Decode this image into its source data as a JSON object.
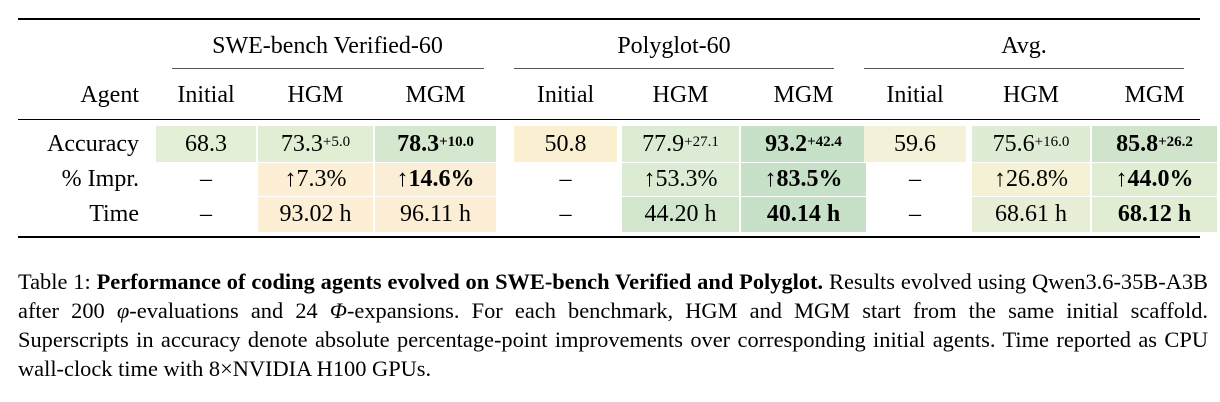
{
  "table": {
    "groups": [
      "SWE-bench Verified-60",
      "Polyglot-60",
      "Avg."
    ],
    "agent_label": "Agent",
    "columns": [
      "Initial",
      "HGM",
      "MGM",
      "Initial",
      "HGM",
      "MGM",
      "Initial",
      "HGM",
      "MGM"
    ],
    "rows": [
      {
        "label": "Accuracy",
        "cells": [
          {
            "v": "68.3",
            "sup": "",
            "bold": false,
            "bg": "#e3efd6"
          },
          {
            "v": "73.3",
            "sup": "+5.0",
            "bold": false,
            "bg": "#e1eed3"
          },
          {
            "v": "78.3",
            "sup": "+10.0",
            "bold": true,
            "bg": "#d5e8cf"
          },
          {
            "v": "50.8",
            "sup": "",
            "bold": false,
            "bg": "#fbefd2"
          },
          {
            "v": "77.9",
            "sup": "+27.1",
            "bold": false,
            "bg": "#dcebd3"
          },
          {
            "v": "93.2",
            "sup": "+42.4",
            "bold": true,
            "bg": "#c7e0c8"
          },
          {
            "v": "59.6",
            "sup": "",
            "bold": false,
            "bg": "#f3f2d8"
          },
          {
            "v": "75.6",
            "sup": "+16.0",
            "bold": false,
            "bg": "#deecd5"
          },
          {
            "v": "85.8",
            "sup": "+26.2",
            "bold": true,
            "bg": "#cfe4cb"
          }
        ]
      },
      {
        "label": "% Impr.",
        "cells": [
          {
            "v": "–",
            "sup": "",
            "bold": false,
            "bg": ""
          },
          {
            "v": "↑7.3%",
            "sup": "",
            "bold": false,
            "bg": "#fcefd5"
          },
          {
            "v": "↑14.6%",
            "sup": "",
            "bold": true,
            "bg": "#faeed6"
          },
          {
            "v": "–",
            "sup": "",
            "bold": false,
            "bg": ""
          },
          {
            "v": "↑53.3%",
            "sup": "",
            "bold": false,
            "bg": "#dcebd3"
          },
          {
            "v": "↑83.5%",
            "sup": "",
            "bold": true,
            "bg": "#c7e0c8"
          },
          {
            "v": "–",
            "sup": "",
            "bold": false,
            "bg": ""
          },
          {
            "v": "↑26.8%",
            "sup": "",
            "bold": false,
            "bg": "#f4f1d5"
          },
          {
            "v": "↑44.0%",
            "sup": "",
            "bold": true,
            "bg": "#e0edd3"
          }
        ]
      },
      {
        "label": "Time",
        "cells": [
          {
            "v": "–",
            "sup": "",
            "bold": false,
            "bg": ""
          },
          {
            "v": "93.02 h",
            "sup": "",
            "bold": false,
            "bg": "#fcefd5"
          },
          {
            "v": "96.11 h",
            "sup": "",
            "bold": false,
            "bg": "#fbeed4"
          },
          {
            "v": "–",
            "sup": "",
            "bold": false,
            "bg": ""
          },
          {
            "v": "44.20 h",
            "sup": "",
            "bold": false,
            "bg": "#d2e6cd"
          },
          {
            "v": "40.14 h",
            "sup": "",
            "bold": true,
            "bg": "#c7e0c8"
          },
          {
            "v": "–",
            "sup": "",
            "bold": false,
            "bg": ""
          },
          {
            "v": "68.61 h",
            "sup": "",
            "bold": false,
            "bg": "#e6efd5"
          },
          {
            "v": "68.12 h",
            "sup": "",
            "bold": true,
            "bg": "#e1edd3"
          }
        ]
      }
    ]
  },
  "caption": {
    "label": "Table 1:",
    "title": "Performance of coding agents evolved on SWE-bench Verified and Polyglot.",
    "part1": " Results evolved using Qwen3.6-35B-A3B after 200 ",
    "phi_small": "φ",
    "part2": "-evaluations and 24 ",
    "phi_big": "Φ",
    "part3": "-expansions. For each benchmark, HGM and MGM start from the same initial scaffold. Superscripts in accuracy denote absolute percentage-point improvements over corresponding initial agents. Time reported as CPU wall-clock time with 8×NVIDIA H100 GPUs."
  }
}
